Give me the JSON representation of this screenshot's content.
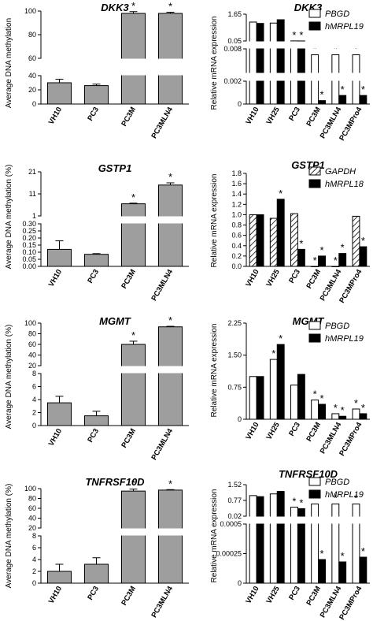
{
  "chart_data": [
    {
      "type": "bar",
      "title": "DKK3",
      "ylabel": "Average DNA methylation",
      "categories": [
        "VH10",
        "PC3",
        "PC3M",
        "PC3MLN4"
      ],
      "series": [
        {
          "values": [
            30,
            26,
            98,
            98
          ],
          "errors": [
            5,
            2,
            1.5,
            1
          ]
        }
      ],
      "significance": [
        "",
        "",
        "*",
        "*"
      ],
      "segments": [
        {
          "min": 0,
          "max": 40,
          "ticks": [
            "0",
            "20",
            "40"
          ]
        },
        {
          "min": 60,
          "max": 100,
          "ticks": [
            "60",
            "80",
            "100"
          ]
        }
      ],
      "color": "#9e9e9e"
    },
    {
      "type": "bar",
      "title": "DKK3",
      "ylabel": "Relative mRNA expression",
      "categories": [
        "VH10",
        "VH25",
        "PC3",
        "PC3M",
        "PC3MLN4",
        "PC3MPro4"
      ],
      "legend": [
        "PBGD",
        "hMRPL19"
      ],
      "legend_position": "top-right",
      "series": [
        {
          "name": "PBGD",
          "values": [
            1.18,
            1.12,
            0.055,
            0.0065,
            0.0065,
            0.0065
          ],
          "style": "open",
          "significance": [
            "",
            "",
            "*",
            "*",
            "*",
            "*"
          ]
        },
        {
          "name": "hMRPL19",
          "values": [
            1.1,
            1.32,
            0.052,
            0.0003,
            0.00075,
            0.00075
          ],
          "style": "filled",
          "significance": [
            "",
            "",
            "*",
            "*",
            "*",
            "*"
          ]
        }
      ],
      "segments": [
        {
          "min": 0,
          "max": 0.002,
          "ticks": [
            "0",
            "0.002"
          ]
        },
        {
          "min": 0.002,
          "max": 0.008,
          "ticks": [
            "0.008"
          ]
        },
        {
          "min": 0.05,
          "max": 1.65,
          "ticks": [
            "0.05",
            "1.65"
          ]
        }
      ]
    },
    {
      "type": "bar",
      "title": "GSTP1",
      "ylabel": "Average DNA methylation (%)",
      "categories": [
        "VH10",
        "PC3",
        "PC3M",
        "PC3MLN4"
      ],
      "series": [
        {
          "values": [
            0.12,
            0.085,
            6.5,
            15
          ],
          "errors": [
            0.06,
            0.005,
            0.3,
            1
          ]
        }
      ],
      "significance": [
        "",
        "",
        "*",
        "*"
      ],
      "segments": [
        {
          "min": 0,
          "max": 0.3,
          "ticks": [
            "0.00",
            "0.05",
            "0.10",
            "0.15",
            "0.20",
            "0.25",
            "0.30"
          ]
        },
        {
          "min": 1,
          "max": 21,
          "ticks": [
            "1",
            "11",
            "21"
          ]
        }
      ],
      "color": "#9e9e9e"
    },
    {
      "type": "bar",
      "title": "GSTP1",
      "ylabel": "Relative mRNA expression",
      "categories": [
        "VH10",
        "VH25",
        "PC3",
        "PC3M",
        "PC3MLN4",
        "PC3MPro4"
      ],
      "legend": [
        "GAPDH",
        "hMRPL18"
      ],
      "legend_position": "top-right",
      "series": [
        {
          "name": "GAPDH",
          "values": [
            1.0,
            0.93,
            1.02,
            0.0,
            0.0,
            0.97
          ],
          "style": "hatched",
          "significance": [
            "",
            "",
            "",
            "*",
            "*",
            ""
          ]
        },
        {
          "name": "hMRPL18",
          "values": [
            1.0,
            1.3,
            0.33,
            0.2,
            0.25,
            0.38
          ],
          "style": "filled",
          "significance": [
            "",
            "*",
            "*",
            "*",
            "*",
            "*"
          ]
        }
      ],
      "ylim": [
        0,
        1.8
      ],
      "yticks": [
        "0.0",
        "0.2",
        "0.4",
        "0.6",
        "0.8",
        "1.0",
        "1.2",
        "1.4",
        "1.6",
        "1.8"
      ]
    },
    {
      "type": "bar",
      "title": "MGMT",
      "ylabel": "Average DNA methylation (%)",
      "categories": [
        "VH10",
        "PC3",
        "PC3M",
        "PC3MLN4"
      ],
      "series": [
        {
          "values": [
            3.5,
            1.5,
            60,
            93
          ],
          "errors": [
            1,
            0.7,
            6,
            1
          ]
        }
      ],
      "significance": [
        "",
        "",
        "*",
        "*"
      ],
      "segments": [
        {
          "min": 0,
          "max": 8,
          "ticks": [
            "0",
            "2",
            "4",
            "6",
            "8"
          ]
        },
        {
          "min": 20,
          "max": 100,
          "ticks": [
            "20",
            "40",
            "60",
            "80",
            "100"
          ]
        }
      ],
      "color": "#9e9e9e"
    },
    {
      "type": "bar",
      "title": "MGMT",
      "ylabel": "Relative mRNA expression",
      "categories": [
        "VH10",
        "VH25",
        "PC3",
        "PC3M",
        "PC3MLN4",
        "PC3MPro4"
      ],
      "legend": [
        "PBGD",
        "hMRPL19"
      ],
      "legend_position": "top-right",
      "series": [
        {
          "name": "PBGD",
          "values": [
            1.0,
            1.4,
            0.8,
            0.45,
            0.13,
            0.24
          ],
          "style": "open",
          "significance": [
            "",
            "*",
            "",
            "*",
            "*",
            "*"
          ]
        },
        {
          "name": "hMRPL19",
          "values": [
            1.0,
            1.75,
            1.05,
            0.35,
            0.07,
            0.13
          ],
          "style": "filled",
          "significance": [
            "",
            "*",
            "",
            "*",
            "*",
            "*"
          ]
        }
      ],
      "ylim": [
        0,
        2.25
      ],
      "yticks": [
        "0",
        "0.75",
        "1.50",
        "2.25"
      ]
    },
    {
      "type": "bar",
      "title": "TNFRSF10D",
      "ylabel": "Average DNA methylation (%)",
      "categories": [
        "VH10",
        "PC3",
        "PC3M",
        "PC3MLN4"
      ],
      "series": [
        {
          "values": [
            2,
            3.2,
            95,
            97
          ],
          "errors": [
            1.2,
            1.1,
            4,
            1
          ]
        }
      ],
      "significance": [
        "",
        "",
        "*",
        "*"
      ],
      "segments": [
        {
          "min": 0,
          "max": 8,
          "ticks": [
            "0",
            "2",
            "4",
            "6",
            "8"
          ]
        },
        {
          "min": 20,
          "max": 100,
          "ticks": [
            "20",
            "40",
            "60",
            "80",
            "100"
          ]
        }
      ],
      "color": "#9e9e9e"
    },
    {
      "type": "bar",
      "title": "TNFRSF10D",
      "ylabel": "Relative mRNA expression",
      "categories": [
        "VH10",
        "VH25",
        "PC3",
        "PC3M",
        "PC3MLN4",
        "PC3MPro4"
      ],
      "legend": [
        "PBGD",
        "hMRPL19"
      ],
      "legend_position": "top-right",
      "series": [
        {
          "name": "PBGD",
          "values": [
            1.0,
            1.08,
            0.45,
            0.6,
            0.6,
            0.6
          ],
          "style": "open",
          "significance": [
            "",
            "",
            "*",
            "*",
            "*",
            "*"
          ]
        },
        {
          "name": "hMRPL19",
          "values": [
            0.95,
            1.2,
            0.38,
            0.0002,
            0.00018,
            0.00022
          ],
          "style": "filled",
          "significance": [
            "",
            "",
            "*",
            "*",
            "*",
            "*"
          ]
        }
      ],
      "segments": [
        {
          "min": 0,
          "max": 0.0005,
          "ticks": [
            "0",
            "0.00025",
            "0.0005"
          ]
        },
        {
          "min": 0.02,
          "max": 1.52,
          "ticks": [
            "0.02",
            "0.77",
            "1.52"
          ]
        }
      ]
    }
  ]
}
